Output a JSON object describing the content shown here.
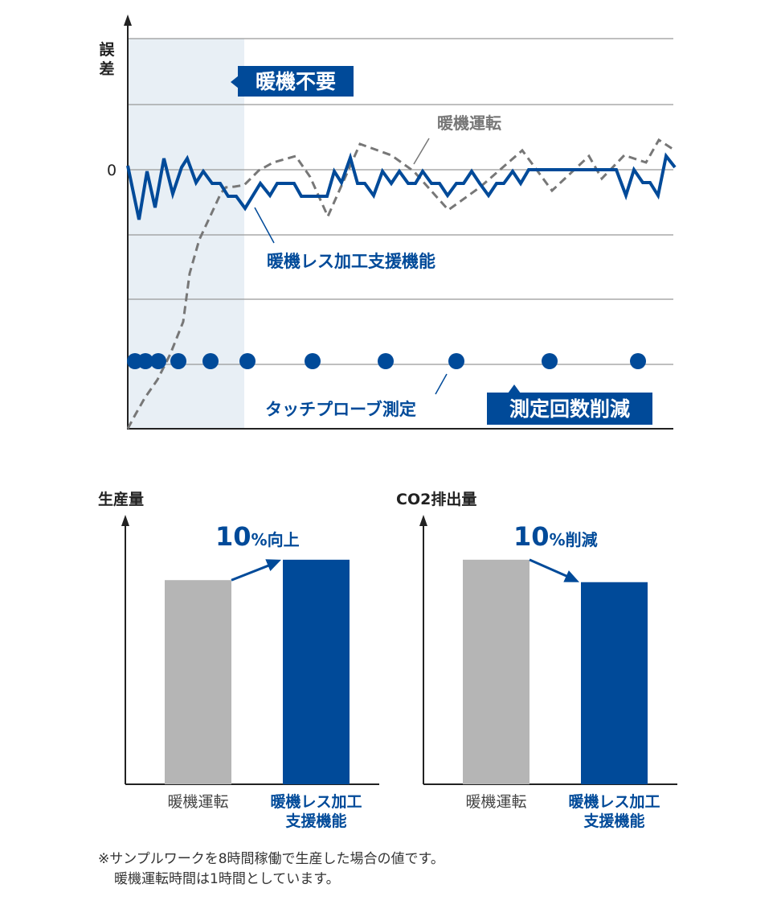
{
  "chart_data": [
    {
      "type": "line",
      "ylabel": "誤差",
      "y_tick_labels": [
        "0"
      ],
      "xlim": [
        0,
        681
      ],
      "ylim": [
        -322,
        163
      ],
      "grid": true,
      "gridlines_y": [
        163,
        81,
        0,
        -81,
        -161,
        -242
      ],
      "shaded_region_x": [
        0,
        145
      ],
      "series": [
        {
          "name": "暖機レス加工支援機能",
          "style": "solid",
          "color": "#004a99",
          "points": [
            [
              0,
              5
            ],
            [
              14,
              -62
            ],
            [
              24,
              -2
            ],
            [
              34,
              -47
            ],
            [
              45,
              14
            ],
            [
              56,
              -30
            ],
            [
              67,
              3
            ],
            [
              74,
              14
            ],
            [
              85,
              -16
            ],
            [
              94,
              -2
            ],
            [
              105,
              -17
            ],
            [
              115,
              -17
            ],
            [
              125,
              -33
            ],
            [
              135,
              -33
            ],
            [
              146,
              -48
            ],
            [
              165,
              -17
            ],
            [
              177,
              -32
            ],
            [
              186,
              -17
            ],
            [
              207,
              -17
            ],
            [
              216,
              -33
            ],
            [
              248,
              -33
            ],
            [
              257,
              -2
            ],
            [
              266,
              -16
            ],
            [
              277,
              15
            ],
            [
              286,
              -17
            ],
            [
              295,
              -17
            ],
            [
              306,
              -32
            ],
            [
              317,
              -2
            ],
            [
              328,
              -17
            ],
            [
              338,
              -2
            ],
            [
              349,
              -17
            ],
            [
              358,
              -17
            ],
            [
              367,
              -2
            ],
            [
              378,
              -17
            ],
            [
              388,
              -17
            ],
            [
              398,
              -32
            ],
            [
              409,
              -17
            ],
            [
              418,
              -17
            ],
            [
              428,
              -2
            ],
            [
              438,
              -17
            ],
            [
              449,
              -32
            ],
            [
              459,
              -17
            ],
            [
              468,
              -17
            ],
            [
              479,
              -2
            ],
            [
              489,
              -17
            ],
            [
              499,
              0
            ],
            [
              608,
              0
            ],
            [
              620,
              -32
            ],
            [
              630,
              0
            ],
            [
              641,
              -16
            ],
            [
              650,
              -16
            ],
            [
              660,
              -32
            ],
            [
              670,
              17
            ],
            [
              681,
              3
            ]
          ]
        },
        {
          "name": "暖機運転",
          "style": "dashed",
          "color": "#777777",
          "points": [
            [
              0,
              -322
            ],
            [
              8,
              -307
            ],
            [
              21,
              -284
            ],
            [
              37,
              -261
            ],
            [
              53,
              -229
            ],
            [
              69,
              -189
            ],
            [
              77,
              -129
            ],
            [
              89,
              -87
            ],
            [
              103,
              -57
            ],
            [
              116,
              -29
            ],
            [
              122,
              -22
            ],
            [
              133,
              -21
            ],
            [
              145,
              -19
            ],
            [
              163,
              -1
            ],
            [
              181,
              9
            ],
            [
              209,
              17
            ],
            [
              227,
              -9
            ],
            [
              249,
              -58
            ],
            [
              289,
              32
            ],
            [
              328,
              18
            ],
            [
              356,
              -2
            ],
            [
              399,
              -50
            ],
            [
              438,
              -22
            ],
            [
              491,
              24
            ],
            [
              528,
              -26
            ],
            [
              574,
              17
            ],
            [
              590,
              -11
            ],
            [
              618,
              18
            ],
            [
              645,
              9
            ],
            [
              661,
              37
            ],
            [
              681,
              24
            ]
          ]
        },
        {
          "name": "タッチプローブ測定",
          "style": "markers",
          "color": "#004a99",
          "y": -238,
          "x": [
            9,
            22,
            38,
            63,
            103,
            149,
            230,
            321,
            409,
            525,
            635
          ]
        }
      ],
      "annotations": {
        "warmup_unneeded": "暖機不要",
        "warmup_run": "暖機運転",
        "warmupless": "暖機レス加工支援機能",
        "touch_probe": "タッチプローブ測定",
        "fewer_measurements": "測定回数削減"
      }
    },
    {
      "type": "bar",
      "title": "生産量",
      "categories": [
        "暖機運転",
        "暖機レス加工支援機能"
      ],
      "category_lines": [
        [
          "暖機運転"
        ],
        [
          "暖機レス加工",
          "支援機能"
        ]
      ],
      "values": [
        100,
        110
      ],
      "colors": [
        "#b5b5b5",
        "#004a99"
      ],
      "ylim": [
        0,
        132
      ],
      "annotation": {
        "number": "10",
        "unit": "%",
        "text": "向上"
      }
    },
    {
      "type": "bar",
      "title": "CO2排出量",
      "categories": [
        "暖機運転",
        "暖機レス加工支援機能"
      ],
      "category_lines": [
        [
          "暖機運転"
        ],
        [
          "暖機レス加工",
          "支援機能"
        ]
      ],
      "values": [
        100,
        90
      ],
      "colors": [
        "#b5b5b5",
        "#004a99"
      ],
      "ylim": [
        0,
        120
      ],
      "annotation": {
        "number": "10",
        "unit": "%",
        "text": "削減"
      }
    }
  ],
  "footnote": {
    "line1": "※サンプルワークを8時間稼働で生産した場合の値です。",
    "line2": "暖機運転時間は1時間としています。"
  },
  "colors": {
    "brand_blue": "#004a99",
    "gray_bar": "#b5b5b5",
    "shade": "#e8eff5",
    "dashed": "#777777"
  }
}
